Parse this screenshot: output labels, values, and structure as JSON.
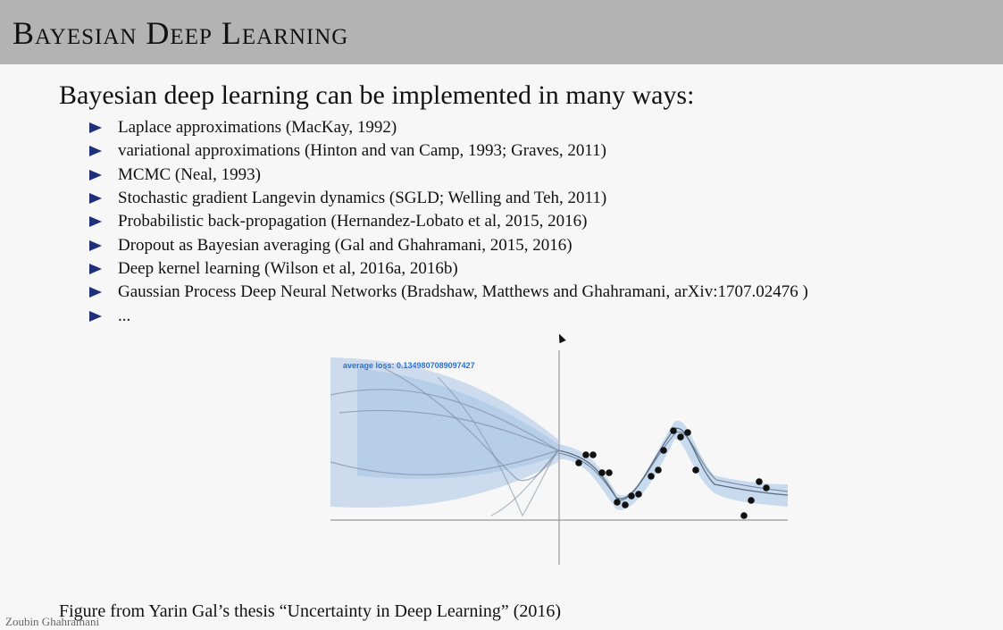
{
  "slide": {
    "title": "Bayesian Deep Learning",
    "intro": "Bayesian deep learning can be implemented in many ways:",
    "bullets": [
      "Laplace approximations (MacKay, 1992)",
      "variational approximations (Hinton and van Camp, 1993; Graves, 2011)",
      "MCMC (Neal, 1993)",
      "Stochastic gradient Langevin dynamics (SGLD; Welling and Teh, 2011)",
      "Probabilistic back-propagation (Hernandez-Lobato et al, 2015, 2016)",
      "Dropout as Bayesian averaging (Gal and Ghahramani, 2015, 2016)",
      "Deep kernel learning (Wilson et al, 2016a, 2016b)",
      "Gaussian Process Deep Neural Networks (Bradshaw, Matthews and Ghahramani, arXiv:1707.02476 )",
      "..."
    ],
    "figure_loss_text": "average loss: 0.1349807089097427",
    "caption": "Figure from Yarin Gal’s thesis “Uncertainty in Deep Learning” (2016)",
    "author": "Zoubin Ghahramani"
  },
  "colors": {
    "header_bg": "#b3b3b3",
    "bullet_arrow": "#1f2f7a",
    "uncertainty_band": "#a9c6e8",
    "loss_text": "#2a6fdb"
  }
}
